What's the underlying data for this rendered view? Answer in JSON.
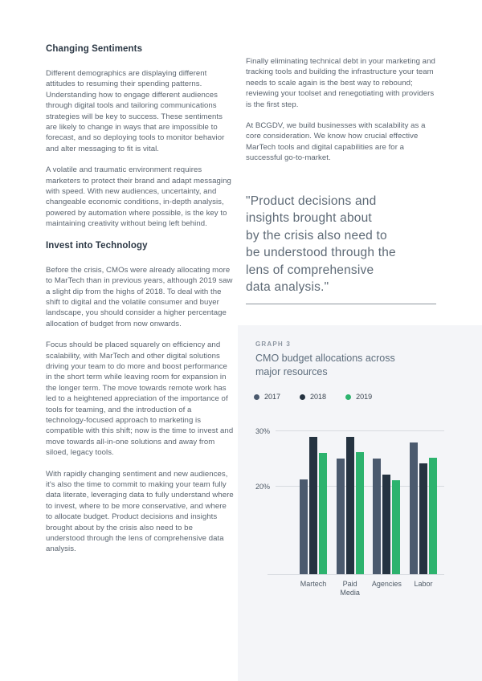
{
  "left_column": {
    "heading1": "Changing Sentiments",
    "p1": "Different demographics are displaying different attitudes to resuming their spending patterns. Understanding how to engage different audiences through digital tools and tailoring communications strategies will be key to success. These sentiments are likely to change in ways that are impossible to forecast, and so deploying tools to monitor behavior and alter messaging to fit is vital.",
    "p2": "A volatile and traumatic environment requires marketers to protect their brand and adapt messaging with speed. With new audiences, uncertainty, and changeable economic conditions, in-depth analysis, powered by automation where possible, is the key to maintaining creativity without being left behind.",
    "heading2": "Invest into Technology",
    "p3": "Before the crisis, CMOs were already allocating more to MarTech than in previous years, although 2019 saw a slight dip from the highs of 2018. To deal with the shift to digital and the volatile consumer and buyer landscape, you should consider a higher percentage allocation of budget from now onwards.",
    "p4": "Focus should be placed squarely on efficiency and scalability, with MarTech and other digital solutions driving your team to do more and boost performance in the short term while leaving room for expansion in the longer term. The move towards remote work has led to a heightened appreciation of the importance of tools for teaming, and the introduction of a technology-focused approach to marketing is compatible with this shift; now is the time to invest and move towards all-in-one solutions and away from siloed, legacy tools.",
    "p5": "With rapidly changing sentiment and new audiences, it's also the time to commit to making your team fully data literate, leveraging data to fully understand where to invest, where to be more conservative, and where to allocate budget. Product decisions and insights brought about by the crisis also need to be understood through the lens of comprehensive data analysis."
  },
  "right_column": {
    "p1": "Finally eliminating technical debt in your marketing and tracking tools and building the infrastructure your team needs to scale again is the best way to rebound; reviewing your toolset and renegotiating with providers is the first step.",
    "p2": "At BCGDV, we build businesses with scalability as a core consideration. We know how crucial effective MarTech tools and digital capabilities are for a successful go-to-market.",
    "quote": "\"Product decisions and\ninsights brought about\nby the crisis also need to\nbe understood through the\nlens of comprehensive\ndata analysis.\""
  },
  "chart_panel": {
    "graph_label": "GRAPH 3",
    "title": "CMO budget allocations across\nmajor resources",
    "panel_bg": "#f4f5f8"
  },
  "chart_data": {
    "type": "bar",
    "title": "CMO budget allocations across major resources",
    "categories": [
      "Martech",
      "Paid\nMedia",
      "Agencies",
      "Labor"
    ],
    "series": [
      {
        "name": "2017",
        "color": "#4b5a6e",
        "values": [
          21.3,
          25.1,
          25.1,
          28.0
        ]
      },
      {
        "name": "2018",
        "color": "#253341",
        "values": [
          29.0,
          29.0,
          22.2,
          24.2
        ]
      },
      {
        "name": "2019",
        "color": "#2db36e",
        "values": [
          26.1,
          26.2,
          21.1,
          25.2
        ]
      }
    ],
    "xlabel": "",
    "ylabel": "",
    "y_ticks": [
      20,
      30
    ],
    "y_tick_labels": [
      "20%",
      "30%"
    ],
    "ylim": [
      4.2,
      31
    ],
    "grid": true,
    "legend_position": "top"
  },
  "colors": {
    "heading": "#2c3845",
    "body_text": "#5a646f",
    "quote_text": "#5e6a76",
    "panel_bg": "#f4f5f8",
    "gridline": "#d8dbe0",
    "accent_green": "#2db36e"
  }
}
